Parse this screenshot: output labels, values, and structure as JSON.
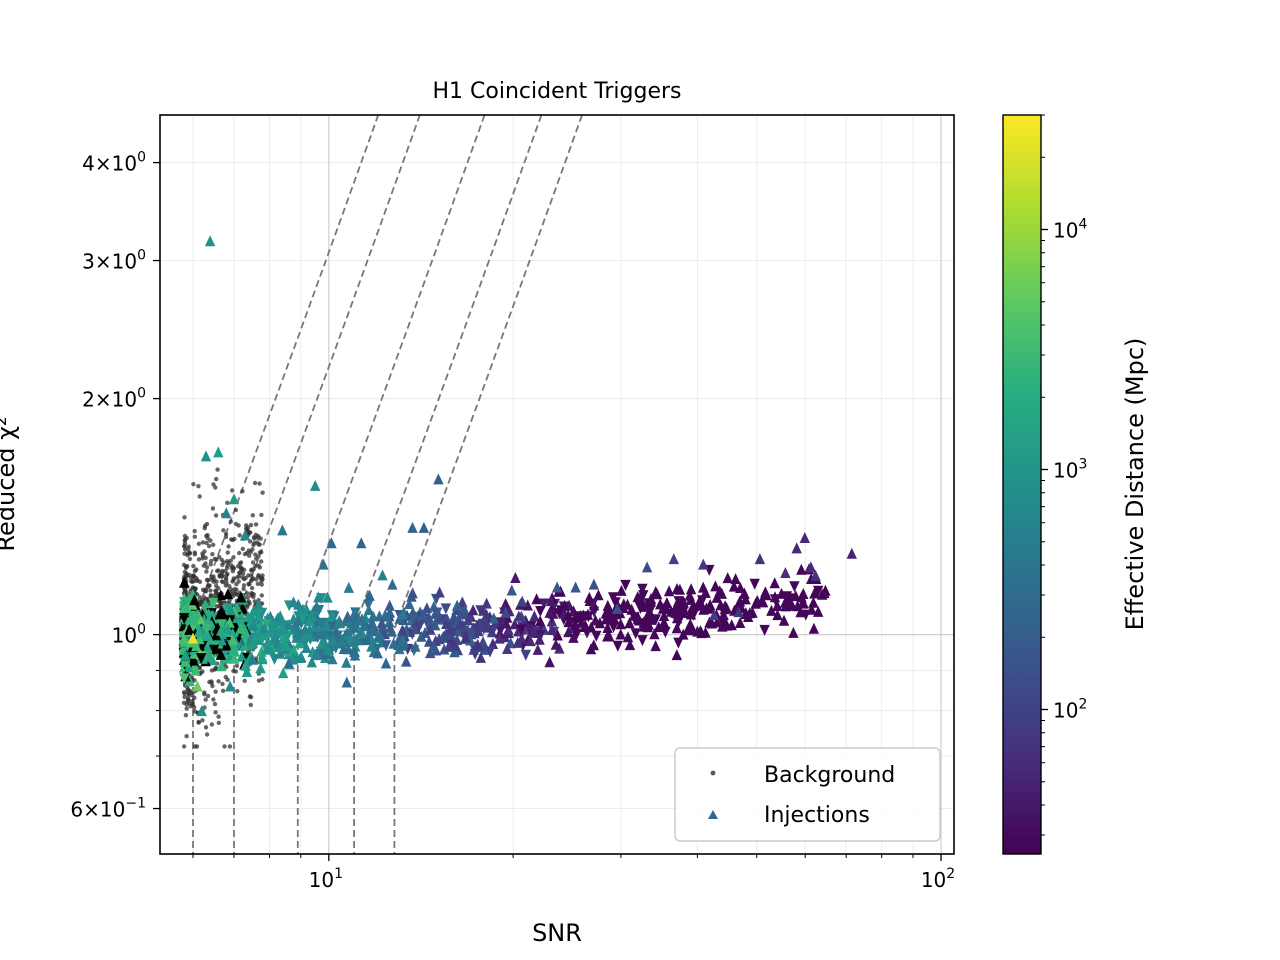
{
  "chart_data": {
    "type": "scatter",
    "title": "H1 Coincident Triggers",
    "xlabel": "SNR",
    "ylabel": "Reduced χ²",
    "x_scale": "log",
    "y_scale": "log",
    "xlim": [
      5.3,
      105
    ],
    "ylim": [
      0.525,
      4.6
    ],
    "x_ticks": [
      {
        "value": 10,
        "base": "10",
        "exp": "1"
      },
      {
        "value": 100,
        "base": "10",
        "exp": "2"
      }
    ],
    "y_ticks": [
      {
        "value": 0.6,
        "mant": "6",
        "base": "10",
        "exp": "−1"
      },
      {
        "value": 1.0,
        "mant": "",
        "base": "10",
        "exp": "0"
      },
      {
        "value": 2.0,
        "mant": "2",
        "base": "10",
        "exp": "0"
      },
      {
        "value": 3.0,
        "mant": "3",
        "base": "10",
        "exp": "0"
      },
      {
        "value": 4.0,
        "mant": "4",
        "base": "10",
        "exp": "0"
      }
    ],
    "grid": true,
    "legend_position": "lower-right",
    "legend": [
      {
        "label": "Background",
        "marker": "dot"
      },
      {
        "label": "Injections",
        "marker": "triangle"
      }
    ],
    "colorbar": {
      "label": "Effective Distance (Mpc)",
      "scale": "log",
      "range": [
        25,
        30000
      ],
      "colormap": "viridis",
      "ticks": [
        {
          "value": 100,
          "base": "10",
          "exp": "2"
        },
        {
          "value": 1000,
          "base": "10",
          "exp": "3"
        },
        {
          "value": 10000,
          "base": "10",
          "exp": "4"
        }
      ]
    },
    "threshold_curves": [
      {
        "snr_min": 6.0,
        "shape_snr": 5.9
      },
      {
        "snr_min": 7.0,
        "shape_snr": 6.9
      },
      {
        "snr_min": 8.9,
        "shape_snr": 8.8
      },
      {
        "snr_min": 11.0,
        "shape_snr": 10.9
      },
      {
        "snr_min": 12.8,
        "shape_snr": 12.7
      }
    ],
    "background_color": "#333333",
    "background_cloud": {
      "snr_range": [
        5.8,
        7.8
      ],
      "chisq_center": 1.05,
      "count": 900
    },
    "series": [
      {
        "name": "Injections",
        "x": [
          6.4,
          6.6,
          6.3,
          7.0,
          9.5,
          7.3,
          6.8,
          8.4,
          9.8,
          10.1,
          11.3,
          13.7,
          14.3,
          15.1,
          12.7,
          19.9,
          25.3,
          27.1,
          33.1,
          36.6,
          40.9,
          50.6,
          55.7,
          59.9,
          61.3,
          62.4,
          71.5,
          58.1,
          46.7,
          42.6,
          29.6,
          23.6,
          18.6,
          16.2,
          12.4,
          10.7,
          8.6,
          7.5,
          6.9,
          6.2,
          6.0,
          6.1
        ],
        "y": [
          3.18,
          1.71,
          1.69,
          1.49,
          1.55,
          1.34,
          1.43,
          1.36,
          1.23,
          1.31,
          1.31,
          1.37,
          1.37,
          1.58,
          1.16,
          1.14,
          1.15,
          1.16,
          1.22,
          1.25,
          1.23,
          1.25,
          1.2,
          1.33,
          1.22,
          1.19,
          1.27,
          1.29,
          1.07,
          1.06,
          1.08,
          1.15,
          1.05,
          1.09,
          0.92,
          0.87,
          0.92,
          0.93,
          0.86,
          0.8,
          0.99,
          0.86
        ],
        "distance_mpc": [
          900,
          1300,
          900,
          1100,
          800,
          700,
          600,
          400,
          350,
          280,
          250,
          240,
          230,
          200,
          300,
          180,
          160,
          150,
          120,
          95,
          80,
          70,
          65,
          55,
          60,
          70,
          50,
          55,
          75,
          90,
          140,
          170,
          200,
          230,
          260,
          280,
          300,
          500,
          700,
          900,
          25000,
          6000
        ],
        "cloud": {
          "snr_range": [
            5.8,
            65
          ],
          "chisq_center": 1.0,
          "count": 1300
        }
      }
    ]
  }
}
